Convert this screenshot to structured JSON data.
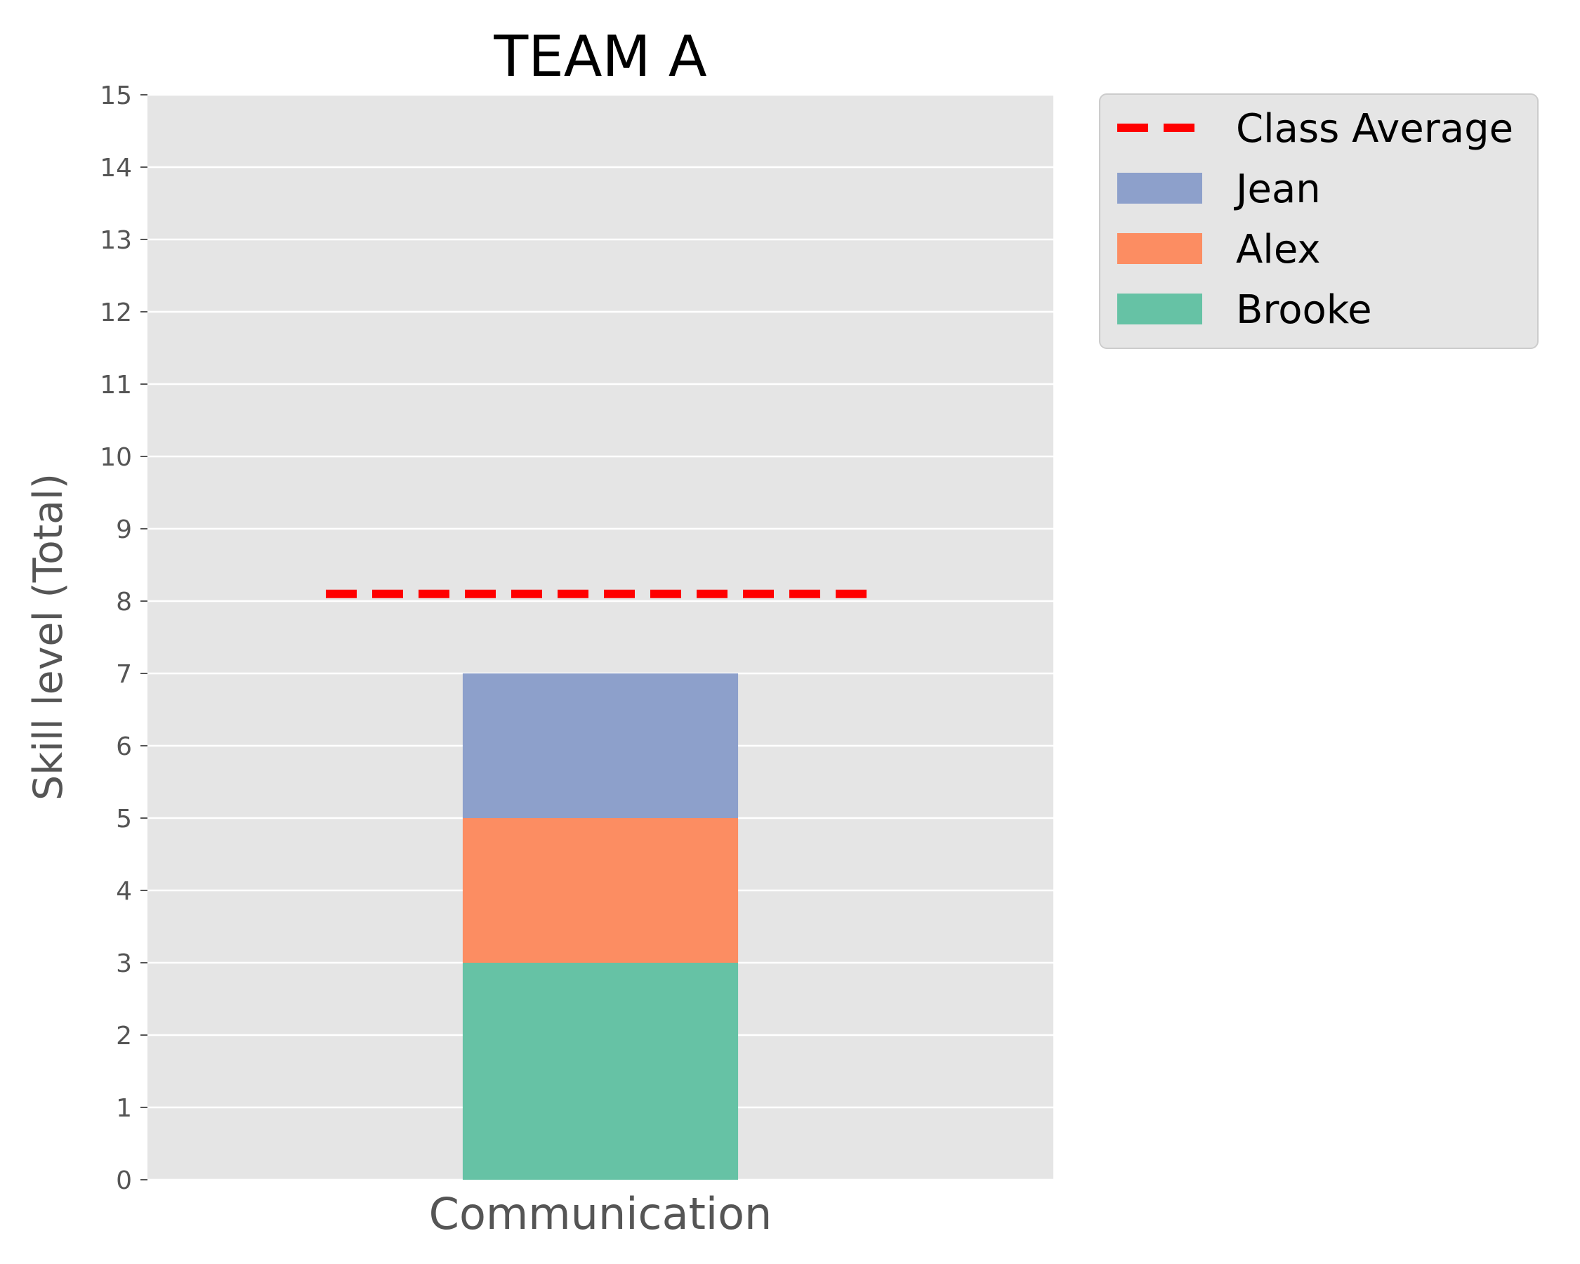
{
  "chart_data": {
    "type": "bar",
    "stacked": true,
    "title": "TEAM A",
    "xlabel": "",
    "ylabel": "Skill level (Total)",
    "categories": [
      "Communication"
    ],
    "ylim": [
      0,
      15
    ],
    "yticks": [
      0,
      1,
      2,
      3,
      4,
      5,
      6,
      7,
      8,
      9,
      10,
      11,
      12,
      13,
      14,
      15
    ],
    "grid": true,
    "legend_position": "outside-top-right",
    "series": [
      {
        "name": "Brooke",
        "values": [
          3
        ],
        "color": "#66c2a5"
      },
      {
        "name": "Alex",
        "values": [
          2
        ],
        "color": "#fc8d62"
      },
      {
        "name": "Jean",
        "values": [
          2
        ],
        "color": "#8da0cb"
      }
    ],
    "reference_lines": [
      {
        "name": "Class Average",
        "value": 8.1,
        "color": "#ff0000",
        "style": "dashed"
      }
    ],
    "legend_order": [
      "Class Average",
      "Jean",
      "Alex",
      "Brooke"
    ]
  }
}
